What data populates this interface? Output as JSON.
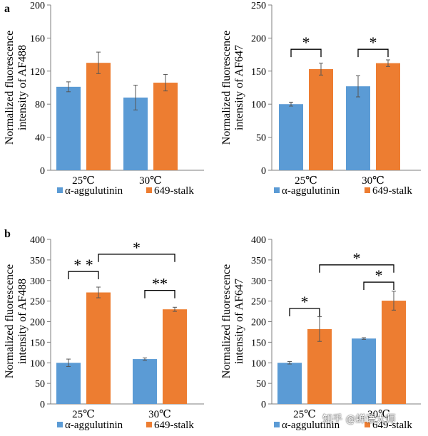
{
  "panel_labels": {
    "a": "a",
    "b": "b"
  },
  "colors": {
    "series1": "#5b9bd5",
    "series2": "#ed7d31",
    "axis": "#7f7f7f",
    "text": "#000000"
  },
  "watermark": "知乎 @蝉语大师",
  "chart_data": [
    {
      "id": "a-left",
      "type": "bar",
      "ylabel": [
        "Normalized fluorescence",
        "intensity of AF488"
      ],
      "categories": [
        "25℃",
        "30℃"
      ],
      "ylim": [
        0,
        200
      ],
      "yticks": [
        0,
        40,
        80,
        120,
        160,
        200
      ],
      "series": [
        {
          "name": "α-aggulutinin",
          "values": [
            101,
            88
          ],
          "errors": [
            6,
            15
          ]
        },
        {
          "name": "649-stalk",
          "values": [
            130,
            106
          ],
          "errors": [
            13,
            10
          ]
        }
      ],
      "legend": [
        "α-aggulutinin",
        "649-stalk"
      ],
      "annotations": []
    },
    {
      "id": "a-right",
      "type": "bar",
      "ylabel": [
        "Normalized fluorescence",
        "intensity of AF647"
      ],
      "categories": [
        "25℃",
        "30℃"
      ],
      "ylim": [
        0,
        250
      ],
      "yticks": [
        0,
        50,
        100,
        150,
        200,
        250
      ],
      "series": [
        {
          "name": "α-aggulutinin",
          "values": [
            100,
            127
          ],
          "errors": [
            3,
            16
          ]
        },
        {
          "name": "649-stalk",
          "values": [
            153,
            162
          ],
          "errors": [
            9,
            5
          ]
        }
      ],
      "legend": [
        "α-aggulutinin",
        "649-stalk"
      ],
      "annotations": [
        {
          "from": [
            0,
            0
          ],
          "to": [
            0,
            1
          ],
          "y": 183,
          "text": "*"
        },
        {
          "from": [
            1,
            0
          ],
          "to": [
            1,
            1
          ],
          "y": 183,
          "text": "*"
        }
      ]
    },
    {
      "id": "b-left",
      "type": "bar",
      "ylabel": [
        "Normalized fluorescence",
        "intensity of AF488"
      ],
      "categories": [
        "25℃",
        "30℃"
      ],
      "ylim": [
        0,
        400
      ],
      "yticks": [
        0,
        50,
        100,
        150,
        200,
        250,
        300,
        350,
        400
      ],
      "series": [
        {
          "name": "α-aggulutinin",
          "values": [
            100,
            109
          ],
          "errors": [
            9,
            3
          ]
        },
        {
          "name": "649-stalk",
          "values": [
            271,
            230
          ],
          "errors": [
            13,
            5
          ]
        }
      ],
      "legend": [
        "α-aggulutinin",
        "649-stalk"
      ],
      "annotations": [
        {
          "from": [
            0,
            0
          ],
          "to": [
            0,
            1
          ],
          "y": 322,
          "text": "* *"
        },
        {
          "from": [
            1,
            0
          ],
          "to": [
            1,
            1
          ],
          "y": 276,
          "text": "**"
        },
        {
          "from": [
            0,
            1
          ],
          "to": [
            1,
            1
          ],
          "y": 364,
          "text": "*"
        }
      ]
    },
    {
      "id": "b-right",
      "type": "bar",
      "ylabel": [
        "Normalized fluorescence",
        "intensity of AF647"
      ],
      "categories": [
        "25℃",
        "30℃"
      ],
      "ylim": [
        0,
        400
      ],
      "yticks": [
        0,
        50,
        100,
        150,
        200,
        250,
        300,
        350,
        400
      ],
      "series": [
        {
          "name": "α-aggulutinin",
          "values": [
            100,
            159
          ],
          "errors": [
            3,
            2
          ]
        },
        {
          "name": "649-stalk",
          "values": [
            182,
            251
          ],
          "errors": [
            30,
            23
          ]
        }
      ],
      "legend": [
        "α-aggulutinin",
        "649-stalk"
      ],
      "annotations": [
        {
          "from": [
            0,
            0
          ],
          "to": [
            0,
            1
          ],
          "y": 232,
          "text": "*"
        },
        {
          "from": [
            1,
            0
          ],
          "to": [
            1,
            1
          ],
          "y": 296,
          "text": "*"
        },
        {
          "from": [
            0,
            1
          ],
          "to": [
            1,
            1
          ],
          "y": 338,
          "text": "*"
        }
      ]
    }
  ]
}
